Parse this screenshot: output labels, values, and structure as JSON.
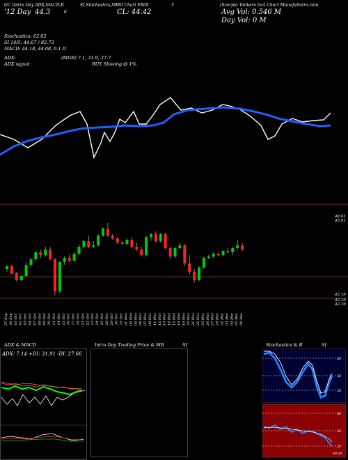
{
  "header": {
    "left_label": "GC (Intra Day ADX,MACD,R",
    "stoch_label": "SI,Stochastics,MR",
    "ticker_label": "SI Chart EXOI",
    "right_label": "(Scorpio Tankers Inc) Chart MunafaSutra.com",
    "num_3": "3",
    "num_6": "6",
    "day_label": "'12 Day",
    "price_short": "44.3",
    "cl_label": "CL: 44.42",
    "avg_vol": "Avg Vol: 0.546 M",
    "day_vol": "Day Vol: 0 M"
  },
  "info": {
    "stoch_line1": "Stochastics: 62.02",
    "stoch_line2": "SI 14/5: 44.67 / 82.73",
    "macd_line": "MACD: 44.18, 44.08, 0.1 D",
    "adx_line_a": "ADX:",
    "adx_line_b": "(MGR) 7.1, 31.9, 27.7",
    "adx_signal_a": "ADX  signal:",
    "adx_signal_b": "BUY Slowing @ 1%"
  },
  "price_axis": {
    "top_label": "48.01",
    "top_label2": "45.91",
    "low_label": "42.19",
    "low_label2": "42.19",
    "low_label3": "42.19"
  },
  "dates": [
    "27 Sep",
    "30 Sep",
    "01 Oct",
    "02 Oct",
    "03 Oct",
    "04 Oct",
    "07 Oct",
    "08 Oct",
    "09 Oct",
    "10 Oct",
    "11 Oct",
    "14 Oct",
    "15 Oct",
    "16 Oct",
    "17 Oct",
    "18 Oct",
    "21 Oct",
    "22 Oct",
    "23 Oct",
    "24 Oct",
    "25 Oct",
    "28 Oct",
    "29 Oct",
    "30 Oct",
    "31 Oct",
    "01 Nov",
    "04 Nov",
    "05 Nov",
    "06 Nov",
    "07 Nov",
    "08 Nov",
    "11 Nov",
    "12 Nov",
    "13 Nov",
    "14 Nov",
    "15 Nov",
    "18 Nov",
    "19 Nov",
    "20 Nov",
    "21 Nov",
    "22 Nov",
    "25 Nov",
    "26 Nov",
    "27 Nov",
    "29 Nov",
    "02 Dec",
    "03 Dec",
    "04 Dec",
    "05 Dec",
    "06 Dec"
  ],
  "panels": {
    "adx_title": "ADX  & MACD",
    "adx_values": "ADX: 7.14  +DI: 31.91  -DI: 27.66",
    "intraday_title": "Intra  Day Trading Price  & MR",
    "intraday_si": "SI",
    "stoch_title": "Stochastics & R",
    "stoch_si": "SI",
    "stoch_levels": [
      "80",
      "50",
      "20"
    ],
    "rsi_levels": [
      "80",
      "50",
      "20"
    ],
    "rsi_value": "44.86"
  },
  "colors": {
    "bull": "#00cc00",
    "bear": "#ff2020",
    "ma": "#1e5fff",
    "price_line": "#ffffff",
    "rsi_bg": "#8b0000",
    "stoch_bg": "#000033"
  },
  "chart_data": {
    "type": "candlestick",
    "ohlc": [
      [
        44.0,
        44.3,
        43.8,
        44.2
      ],
      [
        44.2,
        44.3,
        43.6,
        43.7
      ],
      [
        43.7,
        43.8,
        43.1,
        43.2
      ],
      [
        43.2,
        43.6,
        43.1,
        43.5
      ],
      [
        43.5,
        44.5,
        43.4,
        44.3
      ],
      [
        44.3,
        44.8,
        44.1,
        44.7
      ],
      [
        44.7,
        45.3,
        44.6,
        45.2
      ],
      [
        45.2,
        45.4,
        44.8,
        45.0
      ],
      [
        45.0,
        45.6,
        44.9,
        45.4
      ],
      [
        45.4,
        45.6,
        44.6,
        44.7
      ],
      [
        44.7,
        44.8,
        42.1,
        42.4
      ],
      [
        42.4,
        44.6,
        42.3,
        44.5
      ],
      [
        44.5,
        44.9,
        44.3,
        44.8
      ],
      [
        44.8,
        45.0,
        44.5,
        44.6
      ],
      [
        44.6,
        45.2,
        44.5,
        45.1
      ],
      [
        45.1,
        45.8,
        45.0,
        45.6
      ],
      [
        45.6,
        46.1,
        45.5,
        46.0
      ],
      [
        46.0,
        46.4,
        45.5,
        45.6
      ],
      [
        45.6,
        46.0,
        45.5,
        45.7
      ],
      [
        45.7,
        46.5,
        45.6,
        46.4
      ],
      [
        46.4,
        47.0,
        46.3,
        46.9
      ],
      [
        46.9,
        47.3,
        46.3,
        46.4
      ],
      [
        46.4,
        46.5,
        46.1,
        46.2
      ],
      [
        46.2,
        46.3,
        45.8,
        45.9
      ],
      [
        45.9,
        46.0,
        45.7,
        45.8
      ],
      [
        45.8,
        46.2,
        45.7,
        46.1
      ],
      [
        46.1,
        46.3,
        45.5,
        45.6
      ],
      [
        45.6,
        45.9,
        45.3,
        45.4
      ],
      [
        45.4,
        45.6,
        44.9,
        45.0
      ],
      [
        45.0,
        46.4,
        44.9,
        46.3
      ],
      [
        46.3,
        46.6,
        46.0,
        46.5
      ],
      [
        46.5,
        46.7,
        45.9,
        46.0
      ],
      [
        46.0,
        46.6,
        45.9,
        46.5
      ],
      [
        46.5,
        46.6,
        45.4,
        45.5
      ],
      [
        45.5,
        45.6,
        44.7,
        44.9
      ],
      [
        44.9,
        45.6,
        44.8,
        45.5
      ],
      [
        45.5,
        45.9,
        45.4,
        45.7
      ],
      [
        45.7,
        45.8,
        44.2,
        44.4
      ],
      [
        44.4,
        45.0,
        43.6,
        43.8
      ],
      [
        43.8,
        44.0,
        43.0,
        43.2
      ],
      [
        43.2,
        44.2,
        43.1,
        44.1
      ],
      [
        44.1,
        44.9,
        44.0,
        44.8
      ],
      [
        44.8,
        45.0,
        44.7,
        44.9
      ],
      [
        44.9,
        45.2,
        44.8,
        45.1
      ],
      [
        45.1,
        45.2,
        44.9,
        45.0
      ],
      [
        45.0,
        45.4,
        44.9,
        45.3
      ],
      [
        45.3,
        45.5,
        45.1,
        45.2
      ],
      [
        45.2,
        45.6,
        45.0,
        45.5
      ],
      [
        45.5,
        46.1,
        45.4,
        45.7
      ],
      [
        45.7,
        45.9,
        45.3,
        45.4
      ]
    ],
    "ylim": [
      41.8,
      48.3
    ]
  }
}
